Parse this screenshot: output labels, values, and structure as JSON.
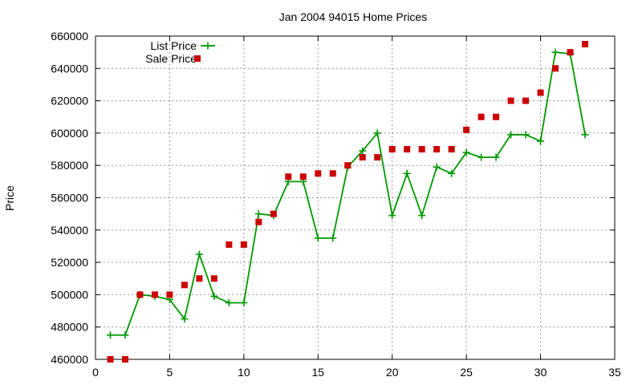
{
  "chart_data": {
    "type": "line",
    "title": "Jan 2004 94015 Home Prices",
    "xlabel": "",
    "ylabel": "Price",
    "xlim": [
      0,
      35
    ],
    "ylim": [
      460000,
      660000
    ],
    "x_ticks": [
      0,
      5,
      10,
      15,
      20,
      25,
      30,
      35
    ],
    "y_ticks": [
      460000,
      480000,
      500000,
      520000,
      540000,
      560000,
      580000,
      600000,
      620000,
      640000,
      660000
    ],
    "grid": true,
    "legend_position": "top-left",
    "series": [
      {
        "name": "List Price",
        "style": "line+plus",
        "color": "#009900",
        "x": [
          1,
          2,
          3,
          4,
          5,
          6,
          7,
          8,
          9,
          10,
          11,
          12,
          13,
          14,
          15,
          16,
          17,
          18,
          19,
          20,
          21,
          22,
          23,
          24,
          25,
          26,
          27,
          28,
          29,
          30,
          31,
          32,
          33
        ],
        "y": [
          475000,
          475000,
          500000,
          499000,
          497000,
          485000,
          525000,
          499000,
          495000,
          495000,
          550000,
          549000,
          570000,
          570000,
          535000,
          535000,
          579000,
          589000,
          600000,
          549000,
          575000,
          549000,
          579000,
          575000,
          588000,
          585000,
          585000,
          599000,
          599000,
          595000,
          650000,
          649000,
          599000
        ]
      },
      {
        "name": "Sale Price",
        "style": "square",
        "color": "#cc0000",
        "x": [
          1,
          2,
          3,
          4,
          5,
          6,
          7,
          8,
          9,
          10,
          11,
          12,
          13,
          14,
          15,
          16,
          17,
          18,
          19,
          20,
          21,
          22,
          23,
          24,
          25,
          26,
          27,
          28,
          29,
          30,
          31,
          32,
          33
        ],
        "y": [
          460000,
          460000,
          500000,
          500000,
          500000,
          506000,
          510000,
          510000,
          531000,
          531000,
          545000,
          550000,
          573000,
          573000,
          575000,
          575000,
          580000,
          585000,
          585000,
          590000,
          590000,
          590000,
          590000,
          590000,
          602000,
          610000,
          610000,
          620000,
          620000,
          625000,
          640000,
          650000,
          655000
        ]
      }
    ]
  }
}
